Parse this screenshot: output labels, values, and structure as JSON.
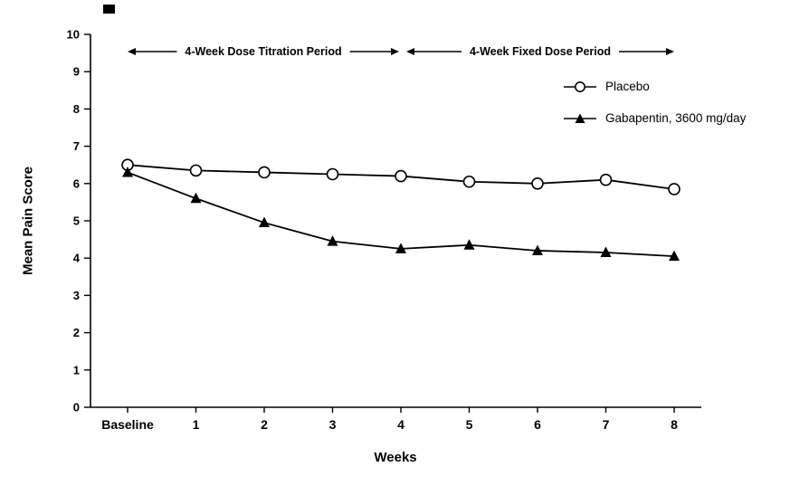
{
  "chart_data": {
    "type": "line",
    "title": "",
    "x": [
      "Baseline",
      "1",
      "2",
      "3",
      "4",
      "5",
      "6",
      "7",
      "8"
    ],
    "series": [
      {
        "name": "Placebo",
        "marker": "circle-open",
        "values": [
          6.5,
          6.35,
          6.3,
          6.25,
          6.2,
          6.05,
          6.0,
          6.1,
          5.85
        ]
      },
      {
        "name": "Gabapentin, 3600 mg/day",
        "marker": "triangle-filled",
        "values": [
          6.3,
          5.6,
          4.95,
          4.45,
          4.25,
          4.35,
          4.2,
          4.15,
          4.05
        ]
      }
    ],
    "xlabel": "Weeks",
    "ylabel": "Mean Pain Score",
    "ylim": [
      0,
      10
    ],
    "yticks": [
      0,
      1,
      2,
      3,
      4,
      5,
      6,
      7,
      8,
      9,
      10
    ],
    "grid": false,
    "legend_position": "top-right",
    "annotations": [
      {
        "text": "4-Week Dose Titration Period",
        "from": "Baseline",
        "to": "4"
      },
      {
        "text": "4-Week Fixed Dose Period",
        "from": "4",
        "to": "8"
      }
    ]
  },
  "colors": {
    "line": "#000000",
    "background": "#ffffff",
    "marker_fill_open": "#ffffff"
  }
}
